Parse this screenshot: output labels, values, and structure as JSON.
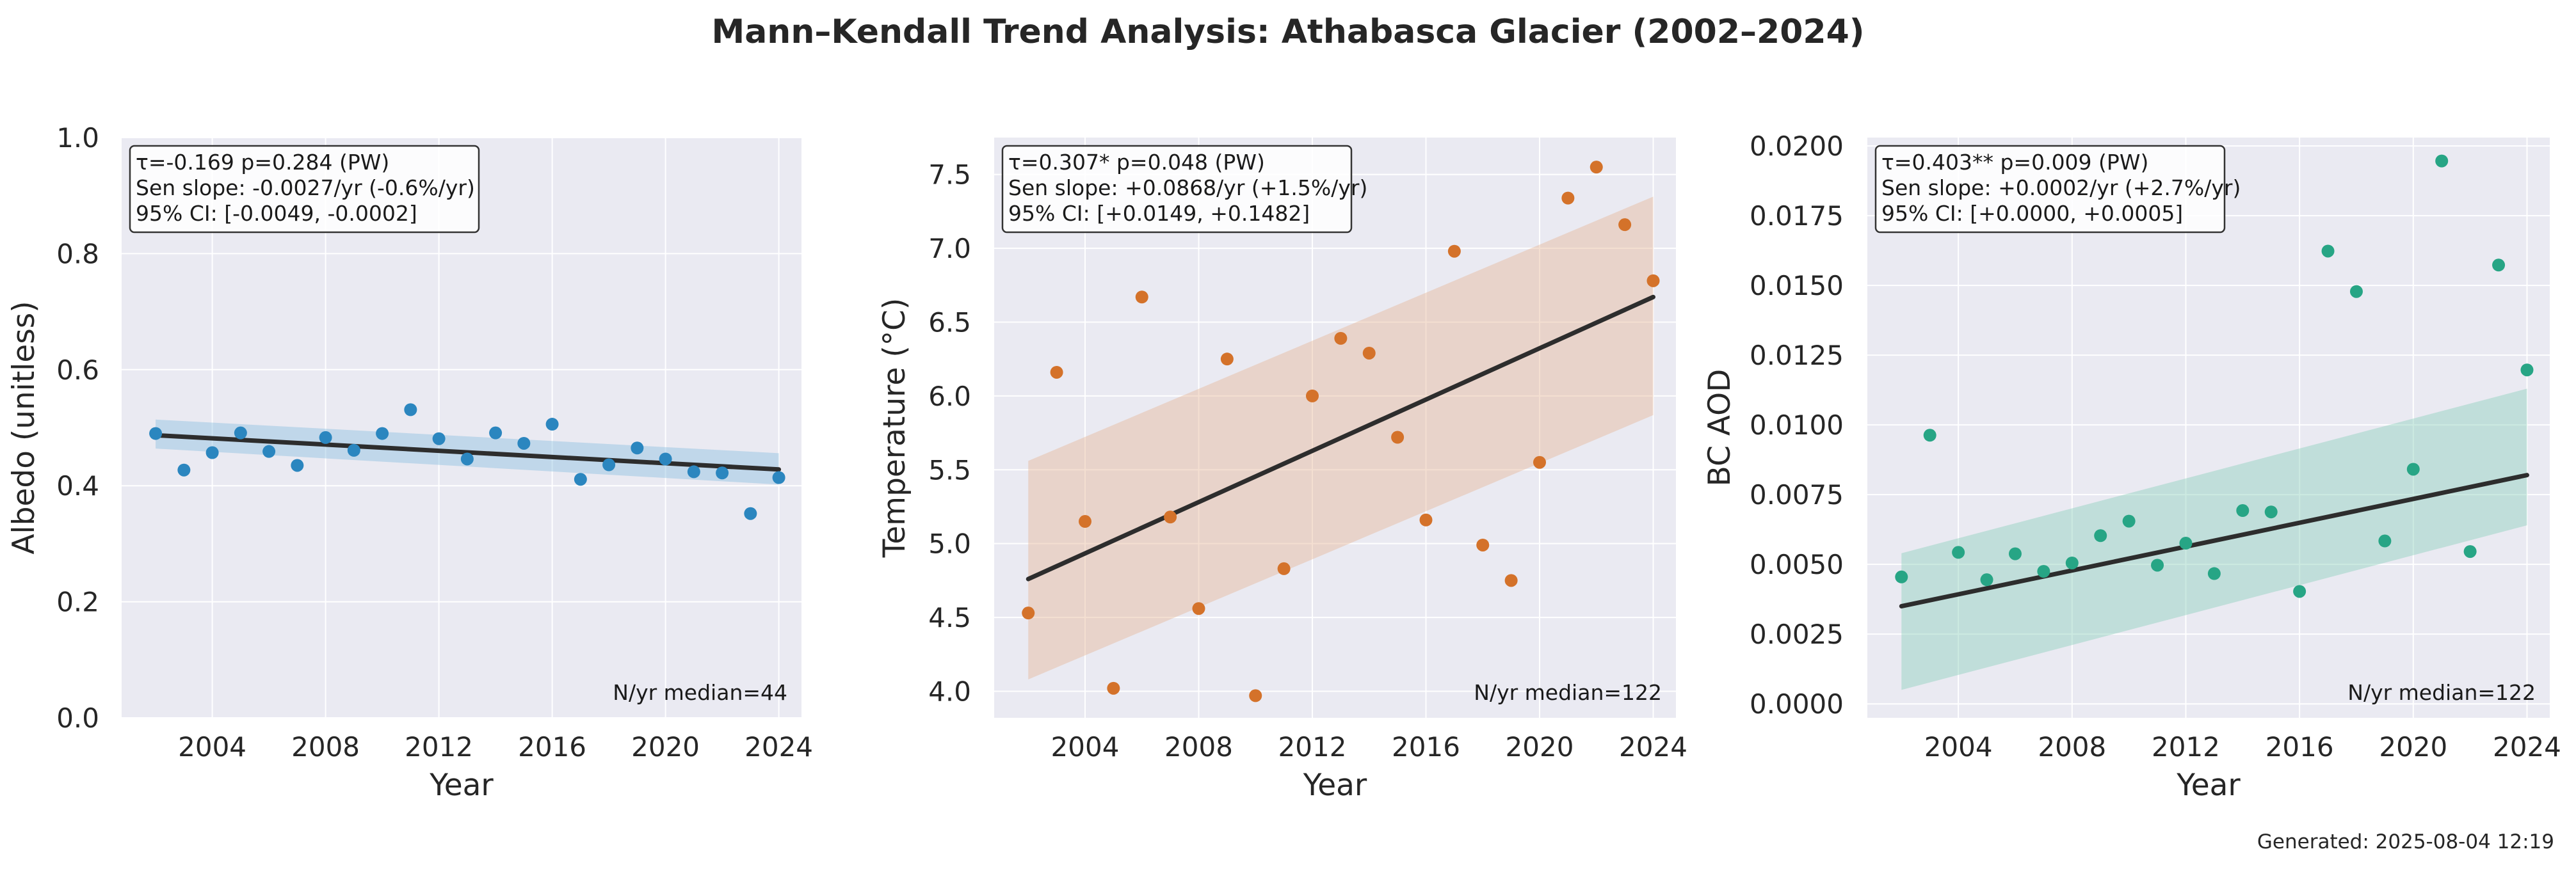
{
  "figure": {
    "title": "Mann–Kendall Trend Analysis: Athabasca Glacier (2002–2024)",
    "footer": "Generated: 2025-08-04 12:19"
  },
  "chart_data": [
    {
      "type": "scatter",
      "xlabel": "Year",
      "ylabel": "Albedo (unitless)",
      "xlim": [
        2000.8,
        2024.8
      ],
      "ylim": [
        0.0,
        1.0
      ],
      "xticks": [
        2004,
        2008,
        2012,
        2016,
        2020,
        2024
      ],
      "xtick_labels": [
        "2004",
        "2008",
        "2012",
        "2016",
        "2020",
        "2024"
      ],
      "yticks": [
        0.0,
        0.2,
        0.4,
        0.6,
        0.8,
        1.0
      ],
      "ytick_labels": [
        "0.0",
        "0.2",
        "0.4",
        "0.6",
        "0.8",
        "1.0"
      ],
      "color": "#2b86bf",
      "band_color": "#8fc1df",
      "grid": true,
      "x": [
        2002,
        2003,
        2004,
        2005,
        2006,
        2007,
        2008,
        2009,
        2010,
        2011,
        2012,
        2013,
        2014,
        2015,
        2016,
        2017,
        2018,
        2019,
        2020,
        2021,
        2022,
        2023,
        2024
      ],
      "y": [
        0.49,
        0.427,
        0.457,
        0.491,
        0.459,
        0.435,
        0.483,
        0.461,
        0.49,
        0.531,
        0.481,
        0.446,
        0.491,
        0.473,
        0.506,
        0.411,
        0.436,
        0.465,
        0.446,
        0.424,
        0.422,
        0.352,
        0.414
      ],
      "trend": {
        "x": [
          2002,
          2024
        ],
        "y": [
          0.487,
          0.428
        ]
      },
      "ci_band": {
        "x": [
          2002,
          2024
        ],
        "lower": [
          0.464,
          0.402
        ],
        "upper": [
          0.514,
          0.456
        ]
      },
      "stats_lines": [
        "τ=-0.169  p=0.284 (PW)",
        "Sen slope: -0.0027/yr (-0.6%/yr)",
        "95% CI: [-0.0049, -0.0002]"
      ],
      "note": "N/yr median=44"
    },
    {
      "type": "scatter",
      "xlabel": "Year",
      "ylabel": "Temperature (°C)",
      "xlim": [
        2000.8,
        2024.8
      ],
      "ylim": [
        3.82,
        7.75
      ],
      "xticks": [
        2004,
        2008,
        2012,
        2016,
        2020,
        2024
      ],
      "xtick_labels": [
        "2004",
        "2008",
        "2012",
        "2016",
        "2020",
        "2024"
      ],
      "yticks": [
        4.0,
        4.5,
        5.0,
        5.5,
        6.0,
        6.5,
        7.0,
        7.5
      ],
      "ytick_labels": [
        "4.0",
        "4.5",
        "5.0",
        "5.5",
        "6.0",
        "6.5",
        "7.0",
        "7.5"
      ],
      "color": "#d4722a",
      "band_color": "#e6b99a",
      "grid": true,
      "x": [
        2002,
        2003,
        2004,
        2005,
        2006,
        2007,
        2008,
        2009,
        2010,
        2011,
        2012,
        2013,
        2014,
        2015,
        2016,
        2017,
        2018,
        2019,
        2020,
        2021,
        2022,
        2023,
        2024
      ],
      "y": [
        4.53,
        6.16,
        5.15,
        4.02,
        6.67,
        5.18,
        4.56,
        6.25,
        3.97,
        4.83,
        6.0,
        6.39,
        6.29,
        5.72,
        5.16,
        6.98,
        4.99,
        4.75,
        5.55,
        7.34,
        7.55,
        7.16,
        6.78
      ],
      "trend": {
        "x": [
          2002,
          2024
        ],
        "y": [
          4.76,
          6.67
        ]
      },
      "ci_band": {
        "x": [
          2002,
          2024
        ],
        "lower": [
          4.08,
          5.87
        ],
        "upper": [
          5.56,
          7.35
        ]
      },
      "stats_lines": [
        "τ=0.307*  p=0.048 (PW)",
        "Sen slope: +0.0868/yr (+1.5%/yr)",
        "95% CI: [+0.0149, +0.1482]"
      ],
      "note": "N/yr median=122"
    },
    {
      "type": "scatter",
      "xlabel": "Year",
      "ylabel": "BC AOD",
      "xlim": [
        2000.8,
        2024.8
      ],
      "ylim": [
        -0.0005,
        0.0203
      ],
      "xticks": [
        2004,
        2008,
        2012,
        2016,
        2020,
        2024
      ],
      "xtick_labels": [
        "2004",
        "2008",
        "2012",
        "2016",
        "2020",
        "2024"
      ],
      "yticks": [
        0.0,
        0.0025,
        0.005,
        0.0075,
        0.01,
        0.0125,
        0.015,
        0.0175,
        0.02
      ],
      "ytick_labels": [
        "0.0000",
        "0.0025",
        "0.0050",
        "0.0075",
        "0.0100",
        "0.0125",
        "0.0150",
        "0.0175",
        "0.0200"
      ],
      "color": "#27a585",
      "band_color": "#8fd1bd",
      "grid": true,
      "x": [
        2002,
        2003,
        2004,
        2005,
        2006,
        2007,
        2008,
        2009,
        2010,
        2011,
        2012,
        2013,
        2014,
        2015,
        2016,
        2017,
        2018,
        2019,
        2020,
        2021,
        2022,
        2023,
        2024
      ],
      "y": [
        0.00455,
        0.00963,
        0.00543,
        0.00445,
        0.00538,
        0.00475,
        0.00505,
        0.00603,
        0.00655,
        0.00497,
        0.00576,
        0.00467,
        0.00693,
        0.00688,
        0.00403,
        0.01623,
        0.01478,
        0.00584,
        0.00841,
        0.01946,
        0.00546,
        0.01573,
        0.01197
      ],
      "trend": {
        "x": [
          2002,
          2024
        ],
        "y": [
          0.0035,
          0.0082
        ]
      },
      "ci_band": {
        "x": [
          2002,
          2024
        ],
        "lower": [
          0.0005,
          0.0064
        ],
        "upper": [
          0.0054,
          0.0113
        ]
      },
      "stats_lines": [
        "τ=0.403**  p=0.009 (PW)",
        "Sen slope: +0.0002/yr (+2.7%/yr)",
        "95% CI: [+0.0000, +0.0005]"
      ],
      "note": "N/yr median=122"
    }
  ]
}
